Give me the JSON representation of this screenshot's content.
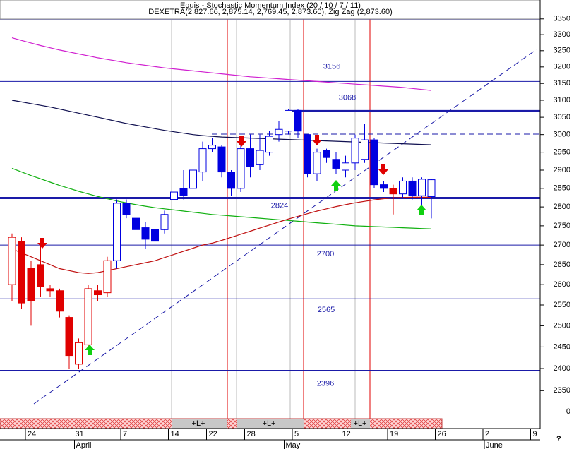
{
  "chart_data": {
    "type": "candlestick",
    "subtitle": "Equis - Stochastic Momentum Index (20 / 10 / 7 / 11)",
    "title": "DEXETRA(2,827.66, 2,875.14, 2,769.45, 2,873.60), Zig Zag (2,873.60)",
    "log_scale": true,
    "ylim": [
      2288,
      3411
    ],
    "yticks": [
      2350,
      2400,
      2450,
      2500,
      2550,
      2600,
      2650,
      2700,
      2750,
      2800,
      2850,
      2900,
      2950,
      3000,
      3050,
      3100,
      3150,
      3200,
      3250,
      3300,
      3350
    ],
    "bottom_label": "0",
    "categories": [
      null,
      null,
      "24",
      null,
      null,
      null,
      null,
      "31",
      null,
      null,
      null,
      null,
      "7",
      null,
      null,
      null,
      null,
      "14",
      null,
      null,
      null,
      "22",
      null,
      null,
      null,
      "28",
      null,
      null,
      null,
      null,
      "5",
      null,
      null,
      null,
      null,
      "12",
      null,
      null,
      null,
      null,
      "19",
      null,
      null,
      null,
      null,
      "26",
      null,
      null,
      null,
      null,
      "2",
      null,
      null,
      null,
      null,
      "9",
      null,
      null
    ],
    "months": [
      "April",
      "May",
      "June"
    ],
    "open": [
      2600,
      2710,
      2640,
      2650,
      2590,
      2585,
      2520,
      2410,
      2455,
      2585,
      2580,
      2660,
      2810,
      2770,
      2745,
      2740,
      2740,
      2820,
      2850,
      2850,
      2895,
      2960,
      2965,
      2895,
      2850,
      2960,
      2915,
      2950,
      3000,
      3010,
      3070,
      3000,
      2890,
      2955,
      2930,
      2900,
      2920,
      2930,
      2985,
      2860,
      2850,
      2835,
      2870,
      2830,
      2827.66,
      null,
      null,
      null,
      null,
      null,
      null,
      null,
      null,
      null,
      null,
      null,
      null,
      null
    ],
    "high": [
      2730,
      2720,
      2660,
      2700,
      2600,
      2590,
      2525,
      2470,
      2600,
      2600,
      2670,
      2820,
      2820,
      2780,
      2760,
      2750,
      2790,
      2880,
      2900,
      2910,
      2980,
      2990,
      2970,
      2900,
      2970,
      3000,
      3000,
      3010,
      3040,
      3075,
      3075,
      3000,
      2960,
      2960,
      2950,
      2940,
      3000,
      3030,
      2990,
      2870,
      2860,
      2880,
      2880,
      2880,
      2875.14,
      null,
      null,
      null,
      null,
      null,
      null,
      null,
      null,
      null,
      null,
      null,
      null,
      null
    ],
    "low": [
      2560,
      2540,
      2500,
      2570,
      2570,
      2520,
      2400,
      2400,
      2440,
      2560,
      2570,
      2640,
      2770,
      2720,
      2690,
      2700,
      2730,
      2800,
      2820,
      2830,
      2870,
      2950,
      2880,
      2830,
      2840,
      2880,
      2900,
      2940,
      2980,
      3000,
      2990,
      2880,
      2870,
      2920,
      2890,
      2880,
      2900,
      2920,
      2850,
      2840,
      2780,
      2825,
      2820,
      2800,
      2769.45,
      null,
      null,
      null,
      null,
      null,
      null,
      null,
      null,
      null,
      null,
      null,
      null,
      null
    ],
    "close": [
      2720,
      2555,
      2560,
      2595,
      2585,
      2535,
      2430,
      2460,
      2590,
      2575,
      2660,
      2810,
      2780,
      2740,
      2715,
      2710,
      2780,
      2840,
      2830,
      2900,
      2960,
      2970,
      2895,
      2850,
      2960,
      2910,
      2955,
      2995,
      3015,
      3070,
      3010,
      2890,
      2950,
      2935,
      2905,
      2920,
      2990,
      2985,
      2860,
      2850,
      2835,
      2870,
      2830,
      2875,
      2873.6,
      null,
      null,
      null,
      null,
      null,
      null,
      null,
      null,
      null,
      null,
      null,
      null,
      null
    ],
    "colors": [
      "#e00000",
      "#e00000",
      "#e00000",
      "#e00000",
      "#e00000",
      "#e00000",
      "#e00000",
      "#e00000",
      "#e00000",
      "#e00000",
      "#e00000",
      "#0000e0",
      "#0000e0",
      "#0000e0",
      "#0000e0",
      "#0000e0",
      "#0000e0",
      "#0000e0",
      "#0000e0",
      "#0000e0",
      "#0000e0",
      "#0000e0",
      "#0000e0",
      "#0000e0",
      "#0000e0",
      "#0000e0",
      "#0000e0",
      "#0000e0",
      "#0000e0",
      "#0000e0",
      "#0000e0",
      "#0000e0",
      "#0000e0",
      "#0000e0",
      "#0000e0",
      "#0000e0",
      "#0000e0",
      "#0000e0",
      "#0000e0",
      "#0000e0",
      "#e00000",
      "#0000e0",
      "#0000e0",
      "#0000e0",
      "#0000e0",
      null,
      null,
      null,
      null,
      null,
      null,
      null,
      null,
      null,
      null,
      null,
      null,
      null
    ],
    "lines": [
      {
        "color": "#d020d0",
        "values": [
          3290,
          3282,
          3274,
          3266,
          3259,
          3252,
          3246,
          3240,
          3234,
          3228,
          3223,
          3218,
          3213,
          3209,
          3205,
          3201,
          3197,
          3194,
          3191,
          3188,
          3185,
          3182,
          3179,
          3176,
          3173,
          3170,
          3168,
          3166,
          3164,
          3162,
          3160,
          3158,
          3156,
          3154,
          3152,
          3150,
          3148,
          3146,
          3144,
          3142,
          3140,
          3138,
          3135,
          3132,
          3129,
          null,
          null,
          null,
          null,
          null,
          null,
          null,
          null,
          null,
          null,
          null,
          null,
          null
        ]
      },
      {
        "color": "#101050",
        "values": [
          3100,
          3095,
          3090,
          3085,
          3080,
          3074,
          3068,
          3062,
          3056,
          3050,
          3044,
          3038,
          3032,
          3027,
          3022,
          3017,
          3012,
          3008,
          3004,
          3000,
          2997,
          2995,
          2993,
          2992,
          2991,
          2990,
          2989,
          2988,
          2987,
          2986,
          2985,
          2984,
          2983,
          2982,
          2981,
          2980,
          2979,
          2978,
          2977,
          2976,
          2975,
          2974,
          2973,
          2972,
          2971,
          null,
          null,
          null,
          null,
          null,
          null,
          null,
          null,
          null,
          null,
          null,
          null,
          null
        ]
      },
      {
        "color": "#10b010",
        "values": [
          2905,
          2895,
          2885,
          2876,
          2867,
          2858,
          2850,
          2842,
          2835,
          2828,
          2822,
          2816,
          2811,
          2806,
          2802,
          2798,
          2795,
          2792,
          2789,
          2786,
          2783,
          2780,
          2778,
          2776,
          2774,
          2772,
          2770,
          2768,
          2766,
          2764,
          2762,
          2760,
          2758,
          2756,
          2754,
          2752,
          2750,
          2749,
          2748,
          2747,
          2746,
          2745,
          2744,
          2743,
          2742,
          null,
          null,
          null,
          null,
          null,
          null,
          null,
          null,
          null,
          null,
          null,
          null,
          null
        ]
      },
      {
        "color": "#c01010",
        "values": [
          2690,
          2680,
          2670,
          2660,
          2650,
          2640,
          2635,
          2630,
          2628,
          2630,
          2635,
          2640,
          2645,
          2650,
          2655,
          2660,
          2668,
          2676,
          2684,
          2692,
          2700,
          2705,
          2712,
          2720,
          2728,
          2736,
          2744,
          2752,
          2760,
          2768,
          2775,
          2782,
          2789,
          2795,
          2801,
          2806,
          2811,
          2815,
          2819,
          2822,
          2824,
          2825,
          2826,
          2826,
          2826,
          null,
          null,
          null,
          null,
          null,
          null,
          null,
          null,
          null,
          null,
          null,
          null,
          null
        ]
      }
    ],
    "levels": [
      3156,
      3068,
      2824,
      2700,
      2565,
      2396
    ],
    "unlabeled_levels": [
      3350
    ],
    "level_color": "#1a1aa8",
    "band_labels": [
      "+L+",
      "+L+",
      "+L+"
    ],
    "help": "?"
  }
}
